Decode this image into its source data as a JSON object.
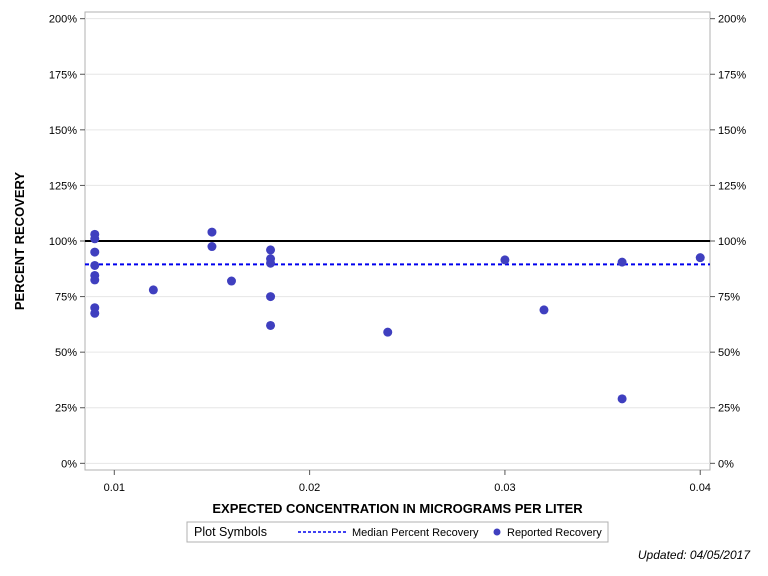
{
  "chart_data": {
    "type": "scatter",
    "xlabel": "EXPECTED CONCENTRATION IN MICROGRAMS PER LITER",
    "ylabel": "PERCENT RECOVERY",
    "xlim": [
      0.0085,
      0.0405
    ],
    "ylim": [
      -3,
      203
    ],
    "x_ticks": [
      0.01,
      0.02,
      0.03,
      0.04
    ],
    "x_tick_labels": [
      "0.01",
      "0.02",
      "0.03",
      "0.04"
    ],
    "y_ticks": [
      0,
      25,
      50,
      75,
      100,
      125,
      150,
      175,
      200
    ],
    "y_tick_labels": [
      "0%",
      "25%",
      "50%",
      "75%",
      "100%",
      "125%",
      "150%",
      "175%",
      "200%"
    ],
    "grid": true,
    "reference_line": {
      "y": 100,
      "color": "#000000"
    },
    "series": [
      {
        "name": "Reported Recovery",
        "type": "scatter",
        "color": "#3f3fbf",
        "points": [
          {
            "x": 0.009,
            "y": 103
          },
          {
            "x": 0.009,
            "y": 101
          },
          {
            "x": 0.009,
            "y": 95
          },
          {
            "x": 0.009,
            "y": 89
          },
          {
            "x": 0.009,
            "y": 84.5
          },
          {
            "x": 0.009,
            "y": 82.5
          },
          {
            "x": 0.009,
            "y": 70
          },
          {
            "x": 0.009,
            "y": 67.5
          },
          {
            "x": 0.012,
            "y": 78
          },
          {
            "x": 0.015,
            "y": 104
          },
          {
            "x": 0.015,
            "y": 97.5
          },
          {
            "x": 0.016,
            "y": 82
          },
          {
            "x": 0.018,
            "y": 96
          },
          {
            "x": 0.018,
            "y": 92
          },
          {
            "x": 0.018,
            "y": 90
          },
          {
            "x": 0.018,
            "y": 75
          },
          {
            "x": 0.018,
            "y": 62
          },
          {
            "x": 0.024,
            "y": 59
          },
          {
            "x": 0.03,
            "y": 91.5
          },
          {
            "x": 0.032,
            "y": 69
          },
          {
            "x": 0.036,
            "y": 90.5
          },
          {
            "x": 0.036,
            "y": 29
          },
          {
            "x": 0.04,
            "y": 92.5
          }
        ]
      },
      {
        "name": "Median Percent Recovery",
        "type": "line",
        "style": "dashed",
        "color": "#0000ee",
        "y": 89.5
      }
    ],
    "legend": {
      "title": "Plot Symbols",
      "placement": "bottom-center",
      "entries": [
        "Median Percent Recovery",
        "Reported Recovery"
      ]
    }
  },
  "footnote": "Updated: 04/05/2017"
}
